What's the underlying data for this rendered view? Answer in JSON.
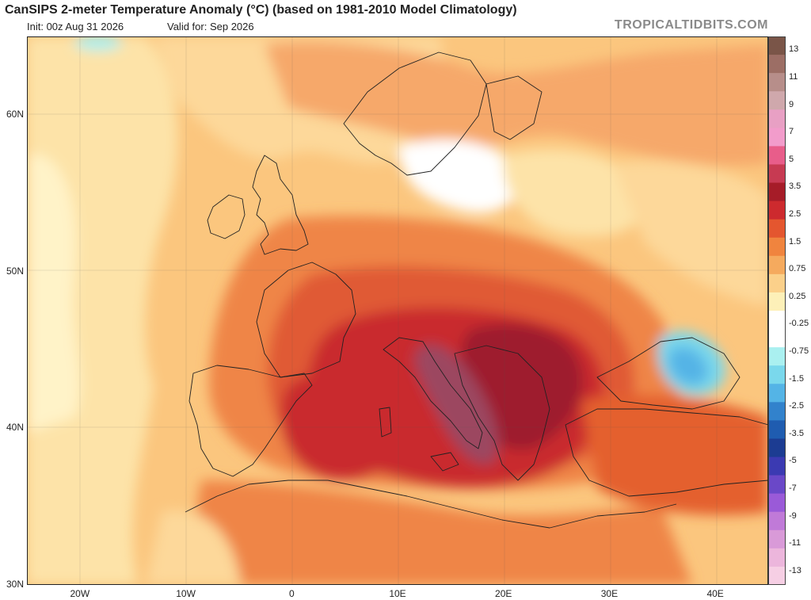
{
  "header": {
    "title": "CanSIPS 2-meter Temperature Anomaly (°C) (based on 1981-2010 Model Climatology)",
    "init": "Init: 00z Aug 31 2026",
    "valid": "Valid for: Sep 2026",
    "brand": "TROPICALTIDBITS.COM"
  },
  "map": {
    "lat_labels": [
      "60N",
      "50N",
      "40N",
      "30N"
    ],
    "lon_labels": [
      "20W",
      "10W",
      "0",
      "10E",
      "20E",
      "30E",
      "40E"
    ],
    "lat_values": [
      60,
      50,
      40,
      30
    ],
    "lon_values": [
      -20,
      -10,
      0,
      10,
      20,
      30,
      40
    ],
    "lat_range": [
      30,
      65
    ],
    "lon_range": [
      -25,
      45
    ]
  },
  "colorbar": {
    "labels": [
      "13",
      "11",
      "9",
      "7",
      "5",
      "3.5",
      "2.5",
      "1.5",
      "0.75",
      "0.25",
      "-0.25",
      "-0.75",
      "-1.5",
      "-2.5",
      "-3.5",
      "-5",
      "-7",
      "-9",
      "-11",
      "-13"
    ],
    "colors": [
      "#7a5548",
      "#9c6e65",
      "#b78e8a",
      "#cfa8ac",
      "#e8a0c4",
      "#f29ccb",
      "#e85d8a",
      "#c73a52",
      "#a61c28",
      "#cd2a2e",
      "#e4562f",
      "#f0843e",
      "#f5aa5e",
      "#fbd08a",
      "#fdf0b8",
      "#ffffff",
      "#ffffff",
      "#aaf0f0",
      "#7ad8ec",
      "#54b4e6",
      "#3282cc",
      "#1f5cb0",
      "#1c3c92",
      "#3b3ab2",
      "#6a48c8",
      "#9a5ad8",
      "#c07ad8",
      "#d99ad8",
      "#ecb6dc",
      "#f6cfe4"
    ]
  }
}
